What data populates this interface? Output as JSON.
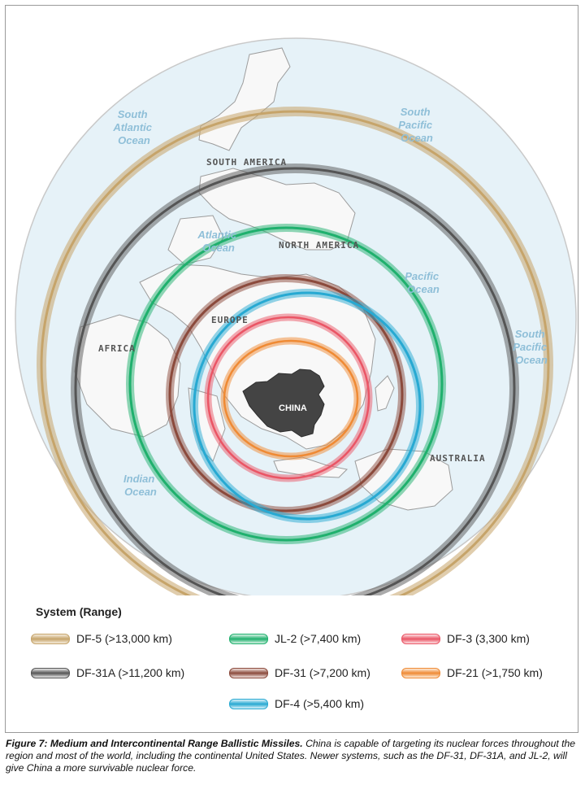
{
  "map": {
    "oceans": [
      "South Atlantic Ocean",
      "South Pacific Ocean",
      "Atlantic Ocean",
      "Pacific Ocean",
      "South Pacific Ocean",
      "Indian Ocean"
    ],
    "continents": [
      "SOUTH AMERICA",
      "NORTH AMERICA",
      "EUROPE",
      "AFRICA",
      "AUSTRALIA"
    ],
    "country": "CHINA",
    "colors": {
      "ocean": "#e6f2f8",
      "land": "#f8f8f8",
      "china": "#444444",
      "DF-5": "#c6a46a",
      "DF-31A": "#555555",
      "JL-2": "#1fb06d",
      "DF-31": "#8b4a3c",
      "DF-4": "#27a9d2",
      "DF-3": "#ea5565",
      "DF-21": "#ef8a34"
    }
  },
  "legend": {
    "title": "System (Range)",
    "items": [
      {
        "key": "DF-5",
        "label": "DF-5 (>13,000 km)"
      },
      {
        "key": "JL-2",
        "label": "JL-2 (>7,400 km)"
      },
      {
        "key": "DF-3",
        "label": "DF-3 (3,300 km)"
      },
      {
        "key": "DF-31A",
        "label": "DF-31A (>11,200 km)"
      },
      {
        "key": "DF-31",
        "label": "DF-31 (>7,200 km)"
      },
      {
        "key": "DF-21",
        "label": "DF-21 (>1,750 km)"
      },
      {
        "key": "DF-4",
        "label": "DF-4 (>5,400 km)"
      }
    ]
  },
  "caption": {
    "figure": "Figure 7: Medium and Intercontinental Range Ballistic Missiles.",
    "text": "China is capable of targeting its nuclear forces throughout the region and most of the world, including the continental United States. Newer systems, such as the DF-31, DF-31A, and JL-2, will give China a more survivable nuclear force."
  }
}
